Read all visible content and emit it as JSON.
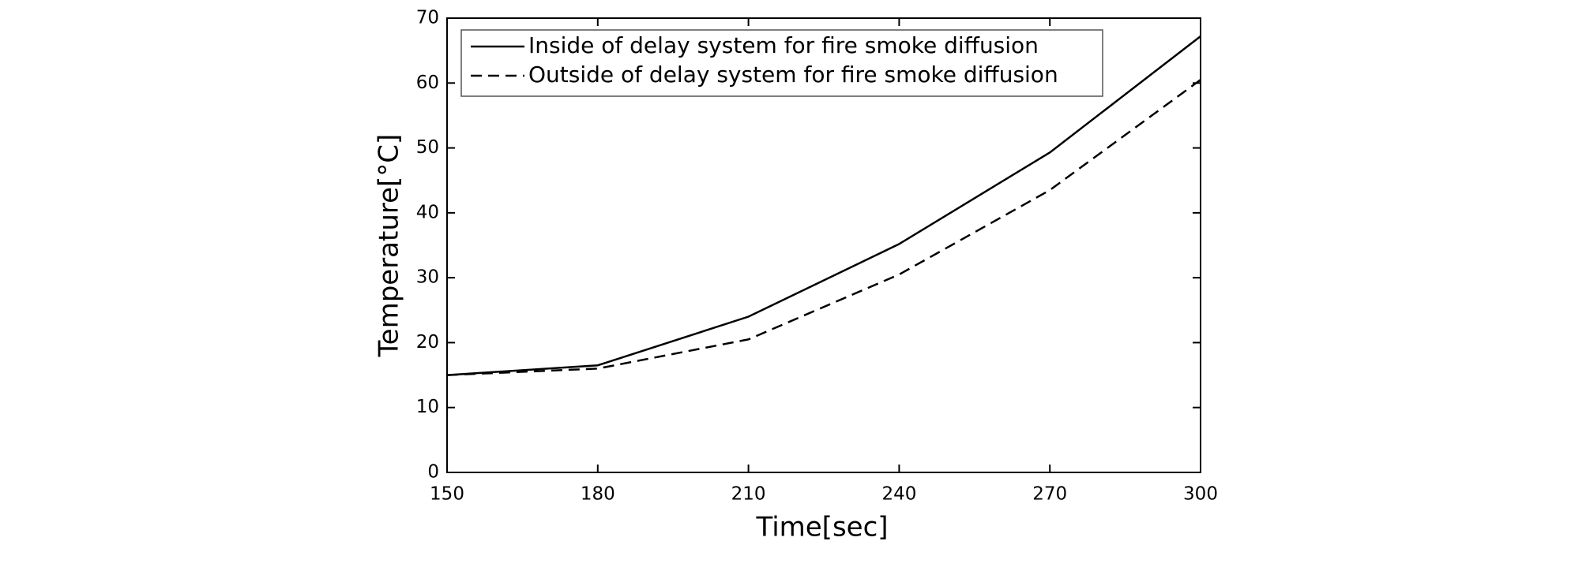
{
  "chart_data": {
    "type": "line",
    "x": [
      150,
      180,
      210,
      240,
      270,
      300
    ],
    "series": [
      {
        "name": "Inside of delay system for fire smoke diffusion",
        "color": "#000000",
        "dash": "solid",
        "values": [
          15,
          16.5,
          24,
          35.2,
          49.3,
          67.2
        ]
      },
      {
        "name": "Outside of delay system for fire smoke diffusion",
        "color": "#000000",
        "dash": "dashed",
        "values": [
          15,
          16,
          20.5,
          30.5,
          43.5,
          60.5
        ]
      }
    ],
    "xlabel": "Time[sec]",
    "ylabel": "Temperature[°C]",
    "xlim": [
      150,
      300
    ],
    "xticks": [
      150,
      180,
      210,
      240,
      270,
      300
    ],
    "ylim": [
      0,
      70
    ],
    "yticks": [
      0,
      10,
      20,
      30,
      40,
      50,
      60,
      70
    ],
    "grid": false,
    "legend": "upper left"
  }
}
